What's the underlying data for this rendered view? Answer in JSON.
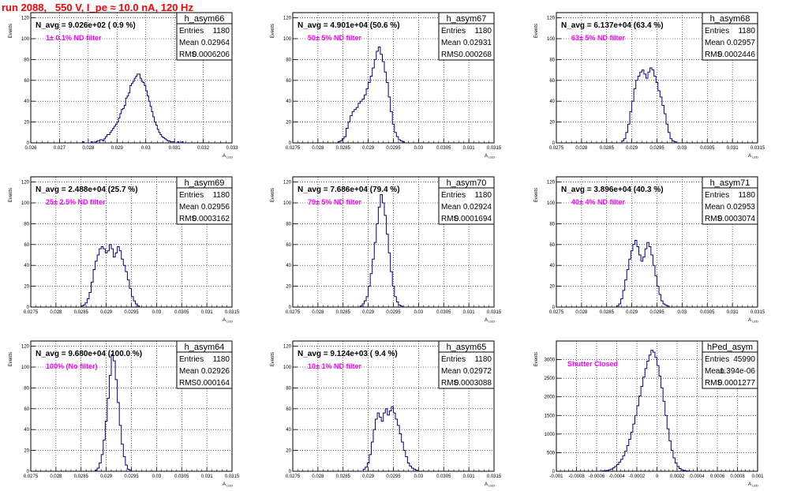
{
  "page_title": "run 2088,   550 V, I_pe ≈ 10.0 nA, 120 Hz",
  "colors": {
    "hist": "#000080",
    "annotation": "#ff00ff",
    "title": "#ff0000"
  },
  "common": {
    "ylabel": "Events",
    "xlabel": "A",
    "xlabel_sub": "LED"
  },
  "chart_data": [
    {
      "type": "bar",
      "name": "h_asym66",
      "entries": "1180",
      "mean": "0.02964",
      "rms": "0.0006206",
      "navg": "N_avg = 9.026e+02 ( 0.9 %)",
      "note": "1± 0.1% ND filter",
      "xlim": [
        0.026,
        0.033
      ],
      "ylim": [
        0,
        125
      ],
      "xticks": [
        "0.026",
        "0.027",
        "0.028",
        "0.029",
        "0.03",
        "0.031",
        "0.032",
        "0.033"
      ],
      "yticks": [
        0,
        20,
        40,
        60,
        80,
        100,
        120
      ],
      "hist": {
        "x0": 0.0278,
        "bin": 5e-05,
        "values": [
          1,
          0,
          0,
          0,
          0,
          0,
          1,
          0,
          0,
          1,
          2,
          2,
          3,
          3,
          2,
          4,
          6,
          8,
          8,
          10,
          12,
          14,
          16,
          18,
          20,
          24,
          28,
          32,
          33,
          36,
          43,
          45,
          48,
          55,
          57,
          59,
          62,
          64,
          66,
          66,
          62,
          59,
          58,
          55,
          50,
          45,
          40,
          35,
          30,
          25,
          20,
          17,
          13,
          10,
          8,
          6,
          5,
          4,
          3,
          2,
          2,
          1,
          1,
          1,
          0,
          0,
          1,
          0,
          0,
          1,
          0
        ]
      }
    },
    {
      "type": "bar",
      "name": "h_asym67",
      "entries": "1180",
      "mean": "0.02931",
      "rms": "0.000268",
      "navg": "N_avg = 4.901e+04 (50.6 %)",
      "note": "50± 5% ND filter",
      "xlim": [
        0.0275,
        0.0315
      ],
      "ylim": [
        0,
        125
      ],
      "xticks": [
        "0.0275",
        "0.028",
        "0.0285",
        "0.029",
        "0.0295",
        "0.03",
        "0.0305",
        "0.031",
        "0.0315"
      ],
      "yticks": [
        0,
        20,
        40,
        60,
        80,
        100,
        120
      ],
      "hist": {
        "x0": 0.0284,
        "bin": 4e-05,
        "values": [
          1,
          2,
          4,
          6,
          14,
          20,
          26,
          30,
          32,
          34,
          38,
          40,
          42,
          46,
          52,
          58,
          64,
          72,
          80,
          88,
          92,
          85,
          78,
          68,
          58,
          44,
          30,
          18,
          10,
          6,
          3,
          2,
          1
        ]
      }
    },
    {
      "type": "bar",
      "name": "h_asym68",
      "entries": "1180",
      "mean": "0.02957",
      "rms": "0.0002446",
      "navg": "N_avg = 6.137e+04 (63.4 %)",
      "note": "63± 5% ND filter",
      "xlim": [
        0.0275,
        0.0315
      ],
      "ylim": [
        0,
        125
      ],
      "xticks": [
        "0.0275",
        "0.028",
        "0.0285",
        "0.029",
        "0.0295",
        "0.03",
        "0.0305",
        "0.031",
        "0.0315"
      ],
      "yticks": [
        0,
        20,
        40,
        60,
        80,
        100,
        120
      ],
      "hist": {
        "x0": 0.0288,
        "bin": 4e-05,
        "values": [
          2,
          4,
          10,
          18,
          30,
          40,
          52,
          60,
          64,
          68,
          70,
          66,
          62,
          68,
          72,
          70,
          64,
          58,
          50,
          44,
          36,
          28,
          18,
          10,
          4,
          2,
          1
        ]
      }
    },
    {
      "type": "bar",
      "name": "h_asym69",
      "entries": "1180",
      "mean": "0.02956",
      "rms": "0.0003162",
      "navg": "N_avg = 2.488e+04 (25.7 %)",
      "note": "25± 2.5% ND filter",
      "xlim": [
        0.0275,
        0.0315
      ],
      "ylim": [
        0,
        125
      ],
      "xticks": [
        "0.0275",
        "0.028",
        "0.0285",
        "0.029",
        "0.0295",
        "0.03",
        "0.0305",
        "0.031",
        "0.0315"
      ],
      "yticks": [
        0,
        20,
        40,
        60,
        80,
        100,
        120
      ],
      "hist": {
        "x0": 0.0285,
        "bin": 4e-05,
        "values": [
          1,
          2,
          4,
          8,
          14,
          24,
          36,
          44,
          50,
          56,
          58,
          56,
          52,
          54,
          60,
          56,
          48,
          52,
          58,
          54,
          46,
          40,
          34,
          26,
          18,
          10,
          6,
          3,
          1
        ]
      }
    },
    {
      "type": "bar",
      "name": "h_asym70",
      "entries": "1180",
      "mean": "0.02924",
      "rms": "0.0001694",
      "navg": "N_avg = 7.686e+04 (79.4 %)",
      "note": "79± 5% ND filter",
      "xlim": [
        0.0275,
        0.0315
      ],
      "ylim": [
        0,
        125
      ],
      "xticks": [
        "0.0275",
        "0.028",
        "0.0285",
        "0.029",
        "0.0295",
        "0.03",
        "0.0305",
        "0.031",
        "0.0315"
      ],
      "yticks": [
        0,
        20,
        40,
        60,
        80,
        100,
        120
      ],
      "hist": {
        "x0": 0.02884,
        "bin": 4e-05,
        "values": [
          1,
          3,
          6,
          10,
          20,
          32,
          46,
          62,
          80,
          96,
          108,
          100,
          88,
          70,
          52,
          34,
          20,
          10,
          5,
          2,
          1
        ]
      }
    },
    {
      "type": "bar",
      "name": "h_asym71",
      "entries": "1180",
      "mean": "0.02953",
      "rms": "0.0003074",
      "navg": "N_avg = 3.896e+04 (40.3 %)",
      "note": "40± 4% ND filter",
      "xlim": [
        0.0275,
        0.0315
      ],
      "ylim": [
        0,
        125
      ],
      "xticks": [
        "0.0275",
        "0.028",
        "0.0285",
        "0.029",
        "0.0295",
        "0.03",
        "0.0305",
        "0.031",
        "0.0315"
      ],
      "yticks": [
        0,
        20,
        40,
        60,
        80,
        100,
        120
      ],
      "hist": {
        "x0": 0.0287,
        "bin": 4e-05,
        "values": [
          1,
          3,
          8,
          16,
          26,
          36,
          46,
          54,
          60,
          64,
          58,
          50,
          44,
          48,
          56,
          62,
          58,
          50,
          40,
          30,
          20,
          12,
          6,
          3,
          2,
          1
        ]
      }
    },
    {
      "type": "bar",
      "name": "h_asym64",
      "entries": "1180",
      "mean": "0.02926",
      "rms": "0.000164",
      "navg": "N_avg = 9.680e+04 (100.0 %)",
      "note": "100% (No filter)",
      "xlim": [
        0.0275,
        0.0315
      ],
      "ylim": [
        0,
        125
      ],
      "xticks": [
        "0.0275",
        "0.028",
        "0.0285",
        "0.029",
        "0.0295",
        "0.03",
        "0.0305",
        "0.031",
        "0.0315"
      ],
      "yticks": [
        0,
        20,
        40,
        60,
        80,
        100,
        120
      ],
      "hist": {
        "x0": 0.02878,
        "bin": 4e-05,
        "values": [
          1,
          3,
          8,
          16,
          30,
          48,
          70,
          92,
          112,
          106,
          88,
          66,
          44,
          26,
          14,
          6,
          2,
          1
        ]
      }
    },
    {
      "type": "bar",
      "name": "h_asym65",
      "entries": "1180",
      "mean": "0.02972",
      "rms": "0.0003088",
      "navg": "N_avg = 9.124e+03 ( 9.4 %)",
      "note": "10± 1% ND filter",
      "xlim": [
        0.0275,
        0.0315
      ],
      "ylim": [
        0,
        125
      ],
      "xticks": [
        "0.0275",
        "0.028",
        "0.0285",
        "0.029",
        "0.0295",
        "0.03",
        "0.0305",
        "0.031",
        "0.0315"
      ],
      "yticks": [
        0,
        20,
        40,
        60,
        80,
        100,
        120
      ],
      "hist": {
        "x0": 0.0289,
        "bin": 4e-05,
        "values": [
          2,
          4,
          8,
          16,
          28,
          40,
          50,
          56,
          52,
          48,
          56,
          60,
          54,
          58,
          62,
          56,
          50,
          44,
          36,
          28,
          20,
          14,
          8,
          5,
          3,
          2,
          1
        ]
      }
    },
    {
      "type": "bar",
      "name": "hPed_asym",
      "entries": "45990",
      "mean": "1.394e-06",
      "rms": "0.0001277",
      "navg": "",
      "note": "Shutter Closed",
      "xlim": [
        -0.001,
        0.001
      ],
      "ylim": [
        0,
        3500
      ],
      "xticks": [
        "-0.001",
        "-0.0008",
        "-0.0006",
        "-0.0004",
        "-0.0002",
        "0",
        "0.0002",
        "0.0004",
        "0.0006",
        "0.0008",
        "0.001"
      ],
      "yticks": [
        0,
        500,
        1000,
        1500,
        2000,
        2500,
        3000
      ],
      "hist": {
        "x0": -0.00056,
        "bin": 2e-05,
        "values": [
          5,
          10,
          15,
          25,
          40,
          60,
          90,
          130,
          180,
          240,
          320,
          420,
          540,
          690,
          860,
          1050,
          1270,
          1500,
          1760,
          2020,
          2280,
          2530,
          2760,
          2960,
          3120,
          3250,
          3200,
          3060,
          2840,
          2560,
          2240,
          1880,
          1500,
          1140,
          820,
          560,
          360,
          220,
          130,
          75,
          40,
          22,
          12,
          6,
          3
        ]
      }
    }
  ]
}
